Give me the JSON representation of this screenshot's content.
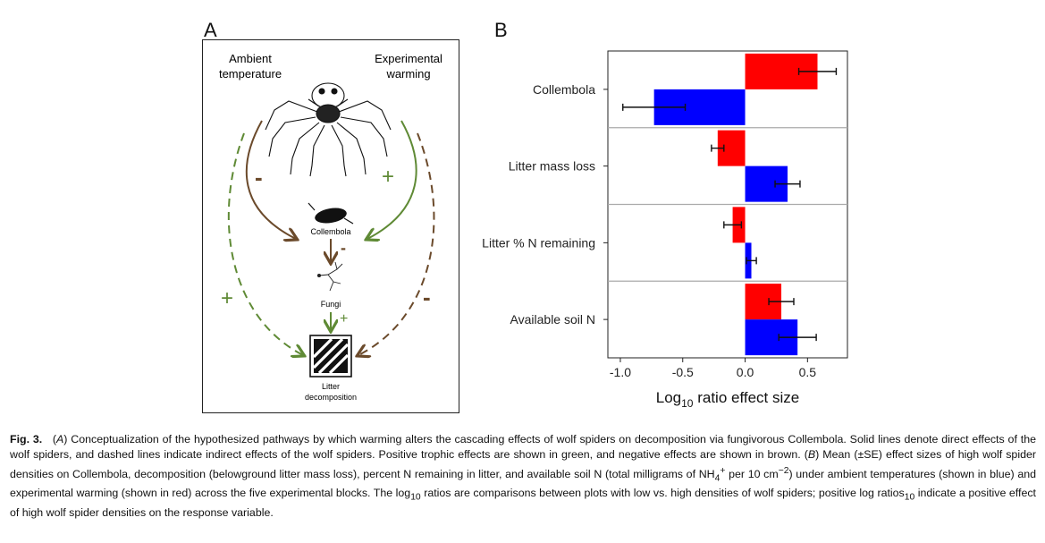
{
  "panel_a": {
    "letter": "A",
    "labels": {
      "ambient": [
        "Ambient",
        "temperature"
      ],
      "warming": [
        "Experimental",
        "warming"
      ],
      "collembola": "Collembola",
      "fungi": "Fungi",
      "litter": [
        "Litter",
        "decomposition"
      ]
    },
    "signs": {
      "left_direct": "-",
      "right_direct": "+",
      "collembola_fungi": "-",
      "fungi_litter": "+",
      "left_indirect": "+",
      "right_indirect": "-"
    },
    "colors": {
      "positive": "#5f8a35",
      "negative": "#6b4a2b"
    }
  },
  "panel_b": {
    "letter": "B"
  },
  "chart_data": {
    "type": "bar",
    "orientation": "horizontal",
    "categories": [
      "Collembola",
      "Litter mass loss",
      "Litter % N remaining",
      "Available soil N"
    ],
    "series": [
      {
        "color": "#ff0000",
        "values": [
          0.58,
          -0.22,
          -0.1,
          0.29
        ],
        "errors": [
          0.15,
          0.05,
          0.07,
          0.1
        ]
      },
      {
        "color": "#0000ff",
        "values": [
          -0.73,
          0.34,
          0.05,
          0.42
        ],
        "errors": [
          0.25,
          0.1,
          0.04,
          0.15
        ]
      }
    ],
    "xlabel": "Log10 ratio effect size",
    "xlabel_main": "Log",
    "xlabel_sub": "10",
    "xlabel_rest": " ratio effect size",
    "xlim": [
      -1.1,
      0.82
    ],
    "xticks": [
      -1.0,
      -0.5,
      0.0,
      0.5
    ],
    "xtick_labels": [
      "-1.0",
      "-0.5",
      "0.0",
      "0.5"
    ],
    "separators": true
  },
  "caption": {
    "fig_label": "Fig. 3.",
    "text_html": "(<i>A</i>) Conceptualization of the hypothesized pathways by which warming alters the cascading effects of wolf spiders on decomposition via fungivorous Collembola. Solid lines denote direct effects of the wolf spiders, and dashed lines indicate indirect effects of the wolf spiders. Positive trophic effects are shown in green, and negative effects are shown in brown. (<i>B</i>) Mean (±SE) effect sizes of high wolf spider densities on Collembola, decomposition (belowground litter mass loss), percent N remaining in litter, and available soil N (total milligrams of NH<sub>4</sub><sup>+</sup> per 10 cm<sup>−2</sup>) under ambient temperatures (shown in blue) and experimental warming (shown in red) across the five experimental blocks. The log<sub>10</sub> ratios are comparisons between plots with low vs. high densities of wolf spiders; positive log ratios<sub>10</sub> indicate a positive effect of high wolf spider densities on the response variable."
  }
}
